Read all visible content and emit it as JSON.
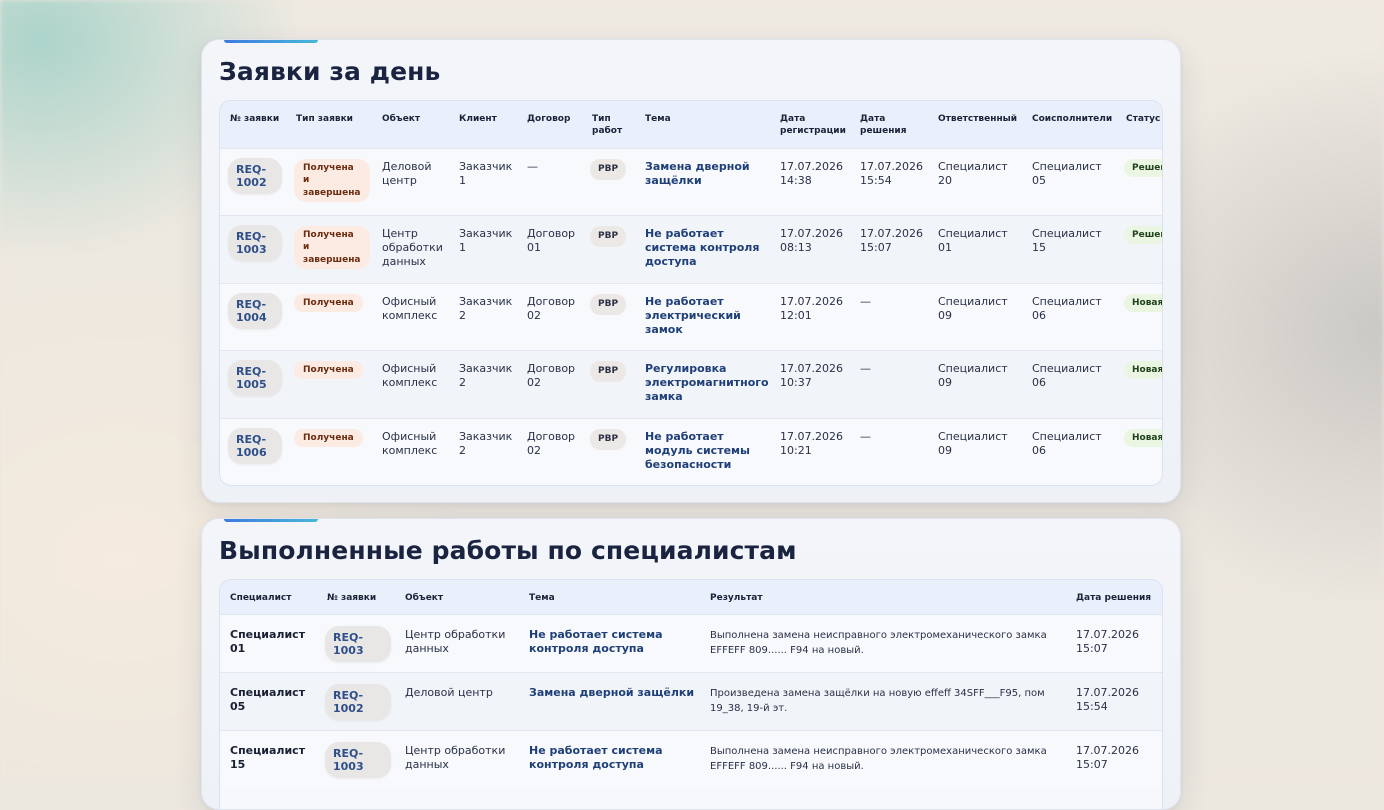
{
  "day_requests": {
    "title": "Заявки за день",
    "columns": [
      "№ заявки",
      "Тип заявки",
      "Объект",
      "Клиент",
      "Договор",
      "Тип работ",
      "Тема",
      "Дата регистрации",
      "Дата решения",
      "Ответственный",
      "Соисполнители",
      "Статус"
    ],
    "rows": [
      {
        "req": "REQ-1002",
        "type": "Получена и завершена",
        "object": "Деловой центр",
        "client": "Заказчик 1",
        "contract": "—",
        "work_type": "PBP",
        "topic": "Замена дверной защёлки",
        "reg_date": "17.07.2026 14:38",
        "sol_date": "17.07.2026 15:54",
        "responsible": "Специалист 20",
        "co_executors": "Специалист 05",
        "status": "Решена"
      },
      {
        "req": "REQ-1003",
        "type": "Получена и завершена",
        "object": "Центр обработки данных",
        "client": "Заказчик 1",
        "contract": "Договор 01",
        "work_type": "PBP",
        "topic": "Не работает система контроля доступа",
        "reg_date": "17.07.2026 08:13",
        "sol_date": "17.07.2026 15:07",
        "responsible": "Специалист 01",
        "co_executors": "Специалист 15",
        "status": "Решена"
      },
      {
        "req": "REQ-1004",
        "type": "Получена",
        "object": "Офисный комплекс",
        "client": "Заказчик 2",
        "contract": "Договор 02",
        "work_type": "PBP",
        "topic": "Не работает электрический замок",
        "reg_date": "17.07.2026 12:01",
        "sol_date": "—",
        "responsible": "Специалист 09",
        "co_executors": "Специалист 06",
        "status": "Новая заявка"
      },
      {
        "req": "REQ-1005",
        "type": "Получена",
        "object": "Офисный комплекс",
        "client": "Заказчик 2",
        "contract": "Договор 02",
        "work_type": "PBP",
        "topic": "Регулировка электромагнитного замка",
        "reg_date": "17.07.2026 10:37",
        "sol_date": "—",
        "responsible": "Специалист 09",
        "co_executors": "Специалист 06",
        "status": "Новая заявка"
      },
      {
        "req": "REQ-1006",
        "type": "Получена",
        "object": "Офисный комплекс",
        "client": "Заказчик 2",
        "contract": "Договор 02",
        "work_type": "PBP",
        "topic": "Не работает модуль системы безопасности",
        "reg_date": "17.07.2026 10:21",
        "sol_date": "—",
        "responsible": "Специалист 09",
        "co_executors": "Специалист 06",
        "status": "Новая заявка"
      }
    ]
  },
  "completed_works": {
    "title": "Выполненные работы по специалистам",
    "columns": [
      "Специалист",
      "№ заявки",
      "Объект",
      "Тема",
      "Результат",
      "Дата решения"
    ],
    "rows": [
      {
        "specialist": "Специалист 01",
        "req": "REQ-1003",
        "object": "Центр обработки данных",
        "topic": "Не работает система контроля доступа",
        "result": "Выполнена замена неисправного электромеханического замка EFFEFF 809...... F94 на новый.",
        "sol_date": "17.07.2026 15:07"
      },
      {
        "specialist": "Специалист 05",
        "req": "REQ-1002",
        "object": "Деловой центр",
        "topic": "Замена дверной защёлки",
        "result": "Произведена замена защёлки на новую effeff 34SFF___F95, пом 19_38, 19-й эт.",
        "sol_date": "17.07.2026 15:54"
      },
      {
        "specialist": "Специалист 15",
        "req": "REQ-1003",
        "object": "Центр обработки данных",
        "topic": "Не работает система контроля доступа",
        "result": "Выполнена замена неисправного электромеханического замка EFFEFF 809...... F94 на новый.",
        "sol_date": "17.07.2026 15:07"
      }
    ]
  }
}
